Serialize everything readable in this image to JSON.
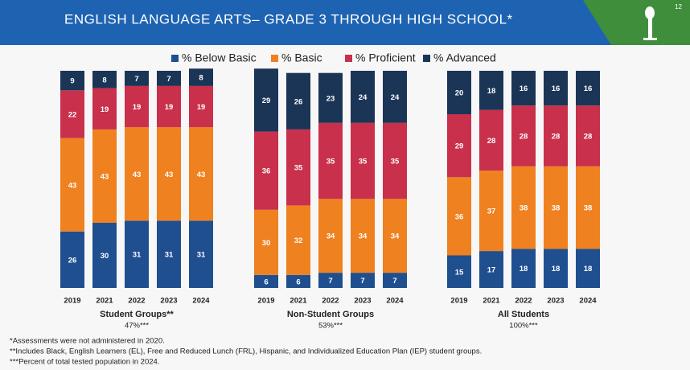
{
  "title": "ENGLISH LANGUAGE ARTS– GRADE 3 THROUGH HIGH SCHOOL*",
  "page_number": "12",
  "footnotes": [
    "*Assessments were not administered in 2020.",
    "**Includes Black, English Learners (EL), Free and Reduced Lunch (FRL), Hispanic, and Individualized Education Plan (IEP) student groups.",
    "***Percent of total tested population in 2024."
  ],
  "chart_data": [
    {
      "type": "bar",
      "stacked": true,
      "title": "Student Groups**",
      "subtitle": "47%***",
      "categories": [
        "2019",
        "2021",
        "2022",
        "2023",
        "2024"
      ],
      "ylim": [
        0,
        100
      ],
      "series": [
        {
          "name": "% Below Basic",
          "color": "#1f4f8f",
          "values": [
            26,
            30,
            31,
            31,
            31
          ]
        },
        {
          "name": "% Basic",
          "color": "#ef8120",
          "values": [
            43,
            43,
            43,
            43,
            43
          ]
        },
        {
          "name": "% Proficient",
          "color": "#c8304b",
          "values": [
            22,
            19,
            19,
            19,
            19
          ]
        },
        {
          "name": "% Advanced",
          "color": "#1b3557",
          "values": [
            9,
            8,
            7,
            7,
            8
          ]
        }
      ]
    },
    {
      "type": "bar",
      "stacked": true,
      "title": "Non-Student Groups",
      "subtitle": "53%***",
      "categories": [
        "2019",
        "2021",
        "2022",
        "2023",
        "2024"
      ],
      "ylim": [
        0,
        100
      ],
      "series": [
        {
          "name": "% Below Basic",
          "color": "#1f4f8f",
          "values": [
            6,
            6,
            7,
            7,
            7
          ]
        },
        {
          "name": "% Basic",
          "color": "#ef8120",
          "values": [
            30,
            32,
            34,
            34,
            34
          ]
        },
        {
          "name": "% Proficient",
          "color": "#c8304b",
          "values": [
            36,
            35,
            35,
            35,
            35
          ]
        },
        {
          "name": "% Advanced",
          "color": "#1b3557",
          "values": [
            29,
            26,
            23,
            24,
            24
          ]
        }
      ]
    },
    {
      "type": "bar",
      "stacked": true,
      "title": "All Students",
      "subtitle": "100%***",
      "categories": [
        "2019",
        "2021",
        "2022",
        "2023",
        "2024"
      ],
      "ylim": [
        0,
        100
      ],
      "series": [
        {
          "name": "% Below Basic",
          "color": "#1f4f8f",
          "values": [
            15,
            17,
            18,
            18,
            18
          ]
        },
        {
          "name": "% Basic",
          "color": "#ef8120",
          "values": [
            36,
            37,
            38,
            38,
            38
          ]
        },
        {
          "name": "% Proficient",
          "color": "#c8304b",
          "values": [
            29,
            28,
            28,
            28,
            28
          ]
        },
        {
          "name": "% Advanced",
          "color": "#1b3557",
          "values": [
            20,
            18,
            16,
            16,
            16
          ]
        }
      ]
    }
  ]
}
